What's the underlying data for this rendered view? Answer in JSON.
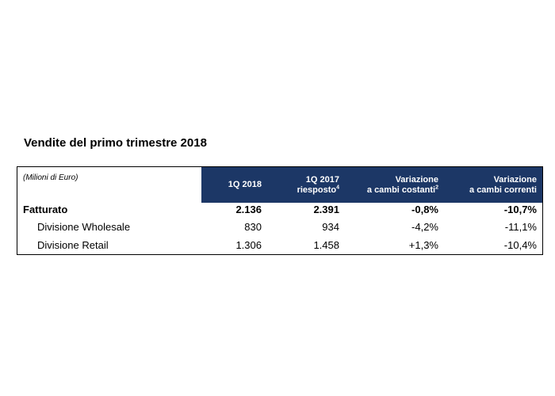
{
  "title": "Vendite del primo trimestre 2018",
  "table": {
    "units_label": "(Milioni di Euro)",
    "headers": [
      {
        "line1": "1Q 2018",
        "line2": "",
        "sup": ""
      },
      {
        "line1": "1Q 2017",
        "line2": "riesposto",
        "sup": "4"
      },
      {
        "line1": "Variazione",
        "line2": "a cambi costanti",
        "sup": "2"
      },
      {
        "line1": "Variazione",
        "line2": "a cambi correnti",
        "sup": ""
      }
    ],
    "rows": [
      {
        "label": "Fatturato",
        "values": [
          "2.136",
          "2.391",
          "-0,8%",
          "-10,7%"
        ]
      },
      {
        "label": "Divisione Wholesale",
        "values": [
          "830",
          "934",
          "-4,2%",
          "-11,1%"
        ]
      },
      {
        "label": "Divisione Retail",
        "values": [
          "1.306",
          "1.458",
          "+1,3%",
          "-10,4%"
        ]
      }
    ]
  },
  "colors": {
    "header_background": "#1c3766",
    "header_text": "#ffffff"
  }
}
